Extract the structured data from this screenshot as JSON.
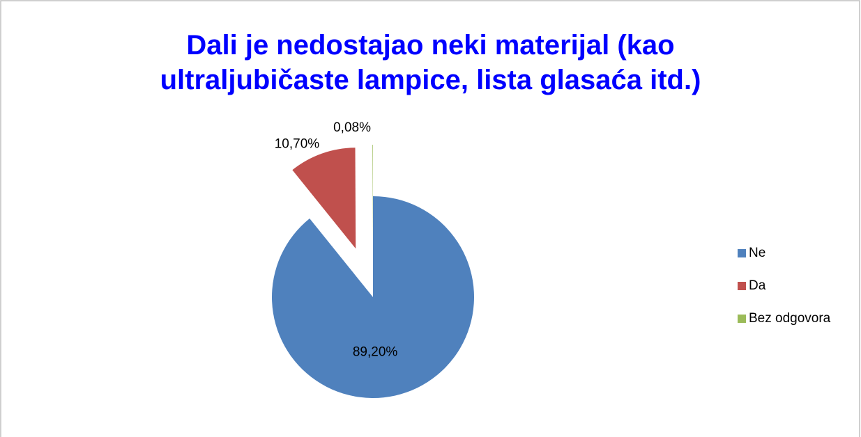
{
  "chart_data": {
    "type": "pie",
    "title": "Dali je nedostajao neki materijal (kao ultraljubičaste lampice, lista glasaća itd.)",
    "categories": [
      "Ne",
      "Da",
      "Bez odgovora"
    ],
    "values": [
      89.2,
      10.7,
      0.08
    ],
    "value_labels": [
      "89,20%",
      "10,70%",
      "0,08%"
    ],
    "colors": [
      "#4f81bd",
      "#c0504d",
      "#9bbb59"
    ],
    "legend": "right"
  }
}
